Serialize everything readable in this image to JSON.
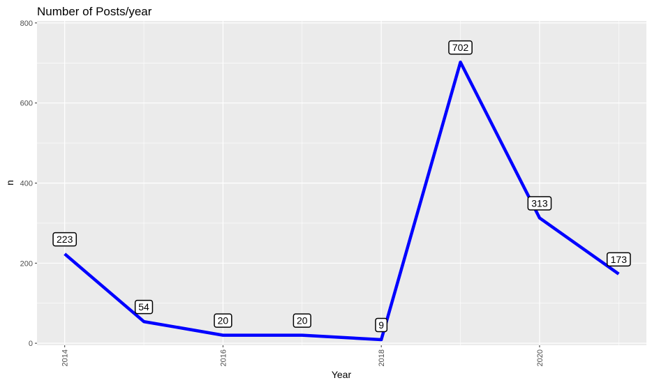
{
  "chart_data": {
    "type": "line",
    "title": "Number of Posts/year",
    "xlabel": "Year",
    "ylabel": "n",
    "x": [
      2014,
      2015,
      2016,
      2017,
      2018,
      2019,
      2020,
      2021
    ],
    "values": [
      223,
      54,
      20,
      20,
      9,
      702,
      313,
      173
    ],
    "data_labels": [
      "223",
      "54",
      "20",
      "20",
      "9",
      "702",
      "313",
      "173"
    ],
    "x_ticks": [
      2014,
      2016,
      2018,
      2020
    ],
    "x_tick_labels": [
      "2014",
      "2016",
      "2018",
      "2020"
    ],
    "y_ticks": [
      0,
      200,
      400,
      600,
      800
    ],
    "y_tick_labels": [
      "0",
      "200",
      "400",
      "600",
      "800"
    ],
    "xlim": [
      2013.65,
      2021.35
    ],
    "ylim": [
      -5,
      805
    ],
    "grid": true,
    "colors": {
      "line": "#0000ff",
      "panel_background": "#ebebeb",
      "grid_major": "#ffffff",
      "label_border": "#000000"
    }
  }
}
